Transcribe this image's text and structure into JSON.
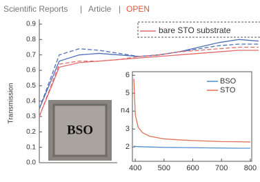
{
  "header": {
    "journal": "Scientific Reports",
    "separator": "|",
    "type": "Article",
    "access": "OPEN"
  },
  "chart_data": [
    {
      "type": "line",
      "y_label": "Transmission",
      "image_label": "BSO",
      "ylim": [
        0,
        0.9
      ],
      "yticks": [
        {
          "value": 0,
          "label": "0.0"
        },
        0.1,
        0.2,
        0.3,
        0.4,
        0.5,
        0.6,
        0.7,
        0.8,
        0.9
      ],
      "series": [
        {
          "color": "#4f6fb8",
          "dash": false,
          "values": [
            0.35,
            0.66,
            0.7,
            0.71,
            0.7,
            0.69,
            0.7,
            0.72,
            0.75,
            0.78,
            0.8,
            0.79
          ]
        },
        {
          "color": "#4f6fb8",
          "dash": true,
          "values": [
            0.35,
            0.7,
            0.74,
            0.73,
            0.71,
            0.69,
            0.7,
            0.72,
            0.74,
            0.76,
            0.77,
            0.77
          ]
        },
        {
          "name": "bare STO substrate",
          "color": "#e06a6a",
          "dash": false,
          "values": [
            0.3,
            0.62,
            0.65,
            0.66,
            0.67,
            0.68,
            0.69,
            0.7,
            0.71,
            0.72,
            0.73,
            0.73
          ]
        },
        {
          "color": "#e06a6a",
          "dash": true,
          "values": [
            0.3,
            0.64,
            0.66,
            0.66,
            0.67,
            0.69,
            0.7,
            0.72,
            0.73,
            0.74,
            0.75,
            0.75
          ]
        }
      ]
    },
    {
      "type": "line",
      "y_label": "n",
      "x": [
        395,
        400,
        410,
        425,
        450,
        500,
        550,
        600,
        650,
        700,
        750,
        800
      ],
      "xlim": [
        390,
        805
      ],
      "xticks": [
        400,
        500,
        600,
        700,
        800
      ],
      "ylim": [
        1.2,
        6.2
      ],
      "yticks": [
        2,
        3,
        4,
        5,
        6
      ],
      "series": [
        {
          "name": "BSO",
          "color": "#4f8fd0",
          "values": [
            2.05,
            2.03,
            2.02,
            2.01,
            2.0,
            1.98,
            1.97,
            1.96,
            1.95,
            1.94,
            1.93,
            1.93
          ]
        },
        {
          "name": "STO",
          "color": "#e07050",
          "values": [
            5.8,
            3.8,
            3.1,
            2.8,
            2.6,
            2.45,
            2.4,
            2.36,
            2.33,
            2.3,
            2.29,
            2.28
          ]
        }
      ]
    }
  ]
}
